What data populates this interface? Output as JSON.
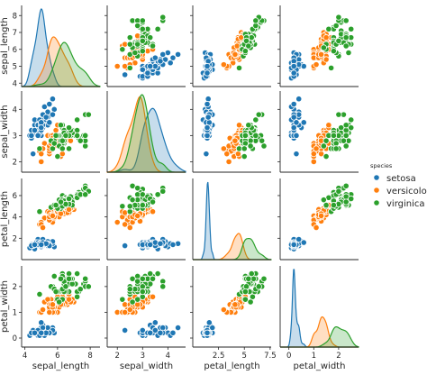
{
  "chart_data": {
    "type": "scatter",
    "title": "",
    "kind": "pairplot",
    "diag_kind": "kde",
    "grid": false,
    "legend_position": "right",
    "variables": [
      "sepal_length",
      "sepal_width",
      "petal_length",
      "petal_width"
    ],
    "axis_ranges": {
      "sepal_length": [
        3.8,
        8.6
      ],
      "sepal_width": [
        1.6,
        4.7
      ],
      "petal_length": [
        0.0,
        7.6
      ],
      "petal_width": [
        -0.35,
        2.8
      ]
    },
    "ticks": {
      "sepal_length": [
        4,
        6,
        8
      ],
      "sepal_width": [
        2,
        3,
        4
      ],
      "petal_length": [
        2.5,
        5.0,
        7.5
      ],
      "petal_width": [
        0,
        1,
        2
      ]
    },
    "y_ticks": {
      "sepal_length": [
        4,
        5,
        6,
        7,
        8
      ],
      "sepal_width": [
        2,
        3,
        4
      ],
      "petal_length": [
        2,
        4,
        6
      ],
      "petal_width": [
        0,
        1,
        2
      ]
    },
    "hue": "species",
    "legend_title": "species",
    "series": [
      {
        "name": "setosa",
        "color": "#1f77b4",
        "points": [
          [
            5.1,
            3.5,
            1.4,
            0.2
          ],
          [
            4.9,
            3.0,
            1.4,
            0.2
          ],
          [
            4.7,
            3.2,
            1.3,
            0.2
          ],
          [
            4.6,
            3.1,
            1.5,
            0.2
          ],
          [
            5.0,
            3.6,
            1.4,
            0.2
          ],
          [
            5.4,
            3.9,
            1.7,
            0.4
          ],
          [
            4.6,
            3.4,
            1.4,
            0.3
          ],
          [
            5.0,
            3.4,
            1.5,
            0.2
          ],
          [
            4.4,
            2.9,
            1.4,
            0.2
          ],
          [
            4.9,
            3.1,
            1.5,
            0.1
          ],
          [
            5.4,
            3.7,
            1.5,
            0.2
          ],
          [
            4.8,
            3.4,
            1.6,
            0.2
          ],
          [
            4.8,
            3.0,
            1.4,
            0.1
          ],
          [
            4.3,
            3.0,
            1.1,
            0.1
          ],
          [
            5.8,
            4.0,
            1.2,
            0.2
          ],
          [
            5.7,
            4.4,
            1.5,
            0.4
          ],
          [
            5.4,
            3.9,
            1.3,
            0.4
          ],
          [
            5.1,
            3.5,
            1.4,
            0.3
          ],
          [
            5.7,
            3.8,
            1.7,
            0.3
          ],
          [
            5.1,
            3.8,
            1.5,
            0.3
          ],
          [
            5.4,
            3.4,
            1.7,
            0.2
          ],
          [
            5.1,
            3.7,
            1.5,
            0.4
          ],
          [
            4.6,
            3.6,
            1.0,
            0.2
          ],
          [
            5.1,
            3.3,
            1.7,
            0.5
          ],
          [
            4.8,
            3.4,
            1.9,
            0.2
          ],
          [
            5.0,
            3.0,
            1.6,
            0.2
          ],
          [
            5.0,
            3.4,
            1.6,
            0.4
          ],
          [
            5.2,
            3.5,
            1.5,
            0.2
          ],
          [
            5.2,
            3.4,
            1.4,
            0.2
          ],
          [
            4.7,
            3.2,
            1.6,
            0.2
          ],
          [
            4.8,
            3.1,
            1.6,
            0.2
          ],
          [
            5.4,
            3.4,
            1.5,
            0.4
          ],
          [
            5.2,
            4.1,
            1.5,
            0.1
          ],
          [
            5.5,
            4.2,
            1.4,
            0.2
          ],
          [
            4.9,
            3.1,
            1.5,
            0.2
          ],
          [
            5.0,
            3.2,
            1.2,
            0.2
          ],
          [
            5.5,
            3.5,
            1.3,
            0.2
          ],
          [
            4.9,
            3.6,
            1.4,
            0.1
          ],
          [
            4.4,
            3.0,
            1.3,
            0.2
          ],
          [
            5.1,
            3.4,
            1.5,
            0.2
          ],
          [
            5.0,
            3.5,
            1.3,
            0.3
          ],
          [
            4.5,
            2.3,
            1.3,
            0.3
          ],
          [
            4.4,
            3.2,
            1.3,
            0.2
          ],
          [
            5.0,
            3.5,
            1.6,
            0.6
          ],
          [
            5.1,
            3.8,
            1.9,
            0.4
          ],
          [
            4.8,
            3.0,
            1.4,
            0.3
          ],
          [
            5.1,
            3.8,
            1.6,
            0.2
          ],
          [
            4.6,
            3.2,
            1.4,
            0.2
          ],
          [
            5.3,
            3.7,
            1.5,
            0.2
          ],
          [
            5.0,
            3.3,
            1.4,
            0.2
          ]
        ]
      },
      {
        "name": "versicolor",
        "color": "#ff7f0e",
        "points": [
          [
            7.0,
            3.2,
            4.7,
            1.4
          ],
          [
            6.4,
            3.2,
            4.5,
            1.5
          ],
          [
            6.9,
            3.1,
            4.9,
            1.5
          ],
          [
            5.5,
            2.3,
            4.0,
            1.3
          ],
          [
            6.5,
            2.8,
            4.6,
            1.5
          ],
          [
            5.7,
            2.8,
            4.5,
            1.3
          ],
          [
            6.3,
            3.3,
            4.7,
            1.6
          ],
          [
            4.9,
            2.4,
            3.3,
            1.0
          ],
          [
            6.6,
            2.9,
            4.6,
            1.3
          ],
          [
            5.2,
            2.7,
            3.9,
            1.4
          ],
          [
            5.0,
            2.0,
            3.5,
            1.0
          ],
          [
            5.9,
            3.0,
            4.2,
            1.5
          ],
          [
            6.0,
            2.2,
            4.0,
            1.0
          ],
          [
            6.1,
            2.9,
            4.7,
            1.4
          ],
          [
            5.6,
            2.9,
            3.6,
            1.3
          ],
          [
            6.7,
            3.1,
            4.4,
            1.4
          ],
          [
            5.6,
            3.0,
            4.5,
            1.5
          ],
          [
            5.8,
            2.7,
            4.1,
            1.0
          ],
          [
            6.2,
            2.2,
            4.5,
            1.5
          ],
          [
            5.6,
            2.5,
            3.9,
            1.1
          ],
          [
            5.9,
            3.2,
            4.8,
            1.8
          ],
          [
            6.1,
            2.8,
            4.0,
            1.3
          ],
          [
            6.3,
            2.5,
            4.9,
            1.5
          ],
          [
            6.1,
            2.8,
            4.7,
            1.2
          ],
          [
            6.4,
            2.9,
            4.3,
            1.3
          ],
          [
            6.6,
            3.0,
            4.4,
            1.4
          ],
          [
            6.8,
            2.8,
            4.8,
            1.4
          ],
          [
            6.7,
            3.0,
            5.0,
            1.7
          ],
          [
            6.0,
            2.9,
            4.5,
            1.5
          ],
          [
            5.7,
            2.6,
            3.5,
            1.0
          ],
          [
            5.5,
            2.4,
            3.8,
            1.1
          ],
          [
            5.5,
            2.4,
            3.7,
            1.0
          ],
          [
            5.8,
            2.7,
            3.9,
            1.2
          ],
          [
            6.0,
            2.7,
            5.1,
            1.6
          ],
          [
            5.4,
            3.0,
            4.5,
            1.5
          ],
          [
            6.0,
            3.4,
            4.5,
            1.6
          ],
          [
            6.7,
            3.1,
            4.7,
            1.5
          ],
          [
            6.3,
            2.3,
            4.4,
            1.3
          ],
          [
            5.6,
            3.0,
            4.1,
            1.3
          ],
          [
            5.5,
            2.5,
            4.0,
            1.3
          ],
          [
            5.5,
            2.6,
            4.4,
            1.2
          ],
          [
            6.1,
            3.0,
            4.6,
            1.4
          ],
          [
            5.8,
            2.6,
            4.0,
            1.2
          ],
          [
            5.0,
            2.3,
            3.3,
            1.0
          ],
          [
            5.6,
            2.7,
            4.2,
            1.3
          ],
          [
            5.7,
            3.0,
            4.2,
            1.2
          ],
          [
            5.7,
            2.9,
            4.2,
            1.3
          ],
          [
            6.2,
            2.9,
            4.3,
            1.3
          ],
          [
            5.1,
            2.5,
            3.0,
            1.1
          ],
          [
            5.7,
            2.8,
            4.1,
            1.3
          ]
        ]
      },
      {
        "name": "virginica",
        "color": "#2ca02c",
        "points": [
          [
            6.3,
            3.3,
            6.0,
            2.5
          ],
          [
            5.8,
            2.7,
            5.1,
            1.9
          ],
          [
            7.1,
            3.0,
            5.9,
            2.1
          ],
          [
            6.3,
            2.9,
            5.6,
            1.8
          ],
          [
            6.5,
            3.0,
            5.8,
            2.2
          ],
          [
            7.6,
            3.0,
            6.6,
            2.1
          ],
          [
            4.9,
            2.5,
            4.5,
            1.7
          ],
          [
            7.3,
            2.9,
            6.3,
            1.8
          ],
          [
            6.7,
            2.5,
            5.8,
            1.8
          ],
          [
            7.2,
            3.6,
            6.1,
            2.5
          ],
          [
            6.5,
            3.2,
            5.1,
            2.0
          ],
          [
            6.4,
            2.7,
            5.3,
            1.9
          ],
          [
            6.8,
            3.0,
            5.5,
            2.1
          ],
          [
            5.7,
            2.5,
            5.0,
            2.0
          ],
          [
            5.8,
            2.8,
            5.1,
            2.4
          ],
          [
            6.4,
            3.2,
            5.3,
            2.3
          ],
          [
            6.5,
            3.0,
            5.5,
            1.8
          ],
          [
            7.7,
            3.8,
            6.7,
            2.2
          ],
          [
            7.7,
            2.6,
            6.9,
            2.3
          ],
          [
            6.0,
            2.2,
            5.0,
            1.5
          ],
          [
            6.9,
            3.2,
            5.7,
            2.3
          ],
          [
            5.6,
            2.8,
            4.9,
            2.0
          ],
          [
            7.7,
            2.8,
            6.7,
            2.0
          ],
          [
            6.3,
            2.7,
            4.9,
            1.8
          ],
          [
            6.7,
            3.3,
            5.7,
            2.1
          ],
          [
            7.2,
            3.2,
            6.0,
            1.8
          ],
          [
            6.2,
            2.8,
            4.8,
            1.8
          ],
          [
            6.1,
            3.0,
            4.9,
            1.8
          ],
          [
            6.4,
            2.8,
            5.6,
            2.1
          ],
          [
            7.2,
            3.0,
            5.8,
            1.6
          ],
          [
            7.4,
            2.8,
            6.1,
            1.9
          ],
          [
            7.9,
            3.8,
            6.4,
            2.0
          ],
          [
            6.4,
            2.8,
            5.6,
            2.2
          ],
          [
            6.3,
            2.8,
            5.1,
            1.5
          ],
          [
            6.1,
            2.6,
            5.6,
            1.4
          ],
          [
            7.7,
            3.0,
            6.1,
            2.3
          ],
          [
            6.3,
            3.4,
            5.6,
            2.4
          ],
          [
            6.4,
            3.1,
            5.5,
            1.8
          ],
          [
            6.0,
            3.0,
            4.8,
            1.8
          ],
          [
            6.9,
            3.1,
            5.4,
            2.1
          ],
          [
            6.7,
            3.1,
            5.6,
            2.4
          ],
          [
            6.9,
            3.1,
            5.1,
            2.3
          ],
          [
            5.8,
            2.7,
            5.1,
            1.9
          ],
          [
            6.8,
            3.2,
            5.9,
            2.3
          ],
          [
            6.7,
            3.3,
            5.7,
            2.5
          ],
          [
            6.7,
            3.0,
            5.2,
            2.3
          ],
          [
            6.3,
            2.5,
            5.0,
            1.9
          ],
          [
            6.5,
            3.0,
            5.2,
            2.0
          ],
          [
            6.2,
            3.4,
            5.4,
            2.3
          ],
          [
            5.9,
            3.0,
            5.1,
            1.8
          ]
        ]
      }
    ]
  }
}
